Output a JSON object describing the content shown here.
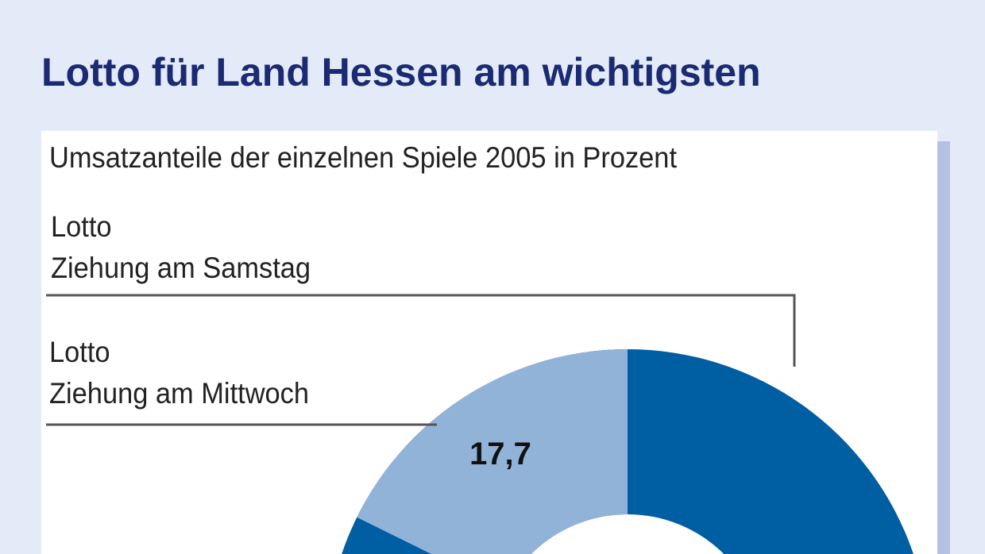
{
  "colors": {
    "background": "#e3ebf9",
    "title": "#1b2a72",
    "dark_blue": "#005ea3",
    "light_blue": "#92b3d8"
  },
  "chart_data": {
    "type": "pie",
    "variant": "donut",
    "title": "Lotto für Land Hessen am wichtigsten",
    "subtitle": "Umsatzanteile der einzelnen Spiele 2005 in Prozent",
    "slices": [
      {
        "name_line1": "Lotto",
        "name_line2": "Ziehung am Samstag",
        "value": null,
        "color": "#005ea3"
      },
      {
        "name_line1": "Lotto",
        "name_line2": "Ziehung am Mittwoch",
        "value": 17.7,
        "value_label": "17,7",
        "color": "#92b3d8"
      }
    ]
  }
}
